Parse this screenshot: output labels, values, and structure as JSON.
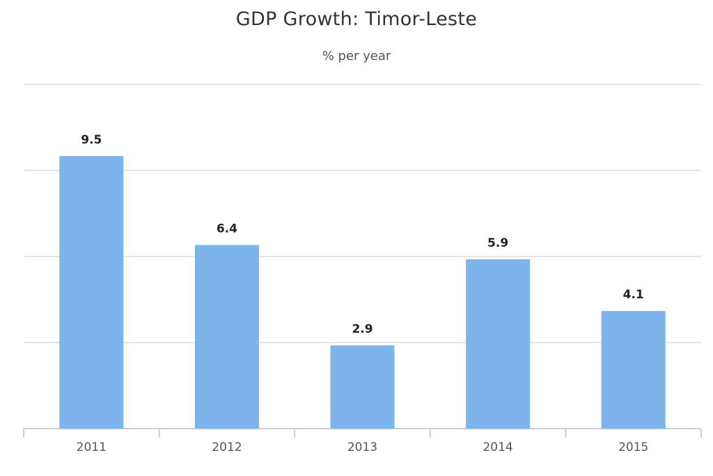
{
  "chart_data": {
    "type": "bar",
    "title": "GDP Growth: Timor-Leste",
    "subtitle": "% per year",
    "categories": [
      "2011",
      "2012",
      "2013",
      "2014",
      "2015"
    ],
    "series": [
      {
        "values": [
          9.5,
          6.4,
          2.9,
          5.9,
          4.1
        ]
      }
    ],
    "ylim": [
      0,
      12
    ],
    "grid": true,
    "legend": "none",
    "colors": {
      "bar": "#7cb5ec"
    }
  }
}
